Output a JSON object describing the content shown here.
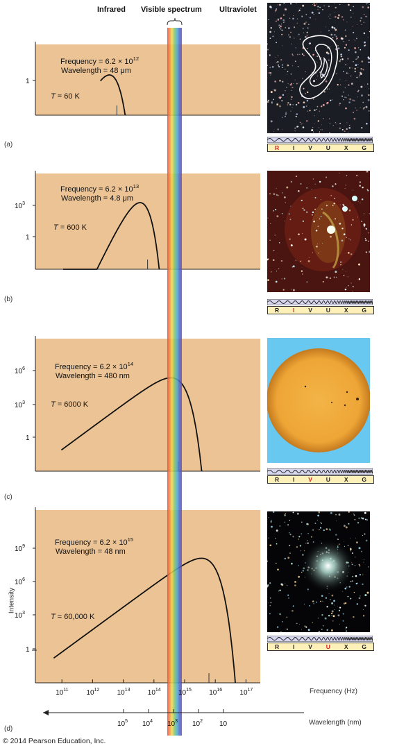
{
  "header": {
    "infrared": "Infrared",
    "visible": "Visible spectrum",
    "ultraviolet": "Ultraviolet"
  },
  "panels": [
    {
      "label": "(a)",
      "frequency_text": "Frequency  = 6.2",
      "frequency_exp": "12",
      "wavelength_text": "Wavelength = 48 μm",
      "temperature": "T = 60 K",
      "y_ticks": [
        "1"
      ],
      "highlight_filter": "R"
    },
    {
      "label": "(b)",
      "frequency_text": "Frequency  = 6.2",
      "frequency_exp": "13",
      "wavelength_text": "Wavelength = 4.8 μm",
      "temperature": "T = 600 K",
      "y_ticks": [
        "10^3",
        "1"
      ],
      "highlight_filter": "I"
    },
    {
      "label": "(c)",
      "frequency_text": "Frequency  = 6.2",
      "frequency_exp": "14",
      "wavelength_text": "Wavelength = 480 nm",
      "temperature": "T = 6000 K",
      "y_ticks": [
        "10^6",
        "10^3",
        "1"
      ],
      "highlight_filter": "V"
    },
    {
      "label": "(d)",
      "frequency_text": "Frequency  = 6.2",
      "frequency_exp": "15",
      "wavelength_text": "Wavelength = 48 nm",
      "temperature": "T = 60,000 K",
      "y_ticks": [
        "10^9",
        "10^6",
        "10^3",
        "1"
      ],
      "highlight_filter": "U"
    }
  ],
  "filters": [
    "R",
    "I",
    "V",
    "U",
    "X",
    "G"
  ],
  "axes": {
    "ylabel": "Intensity",
    "xlabel": "Frequency (Hz)",
    "wavelength_label": "Wavelength (nm)",
    "freq_ticks": [
      "10^11",
      "10^12",
      "10^13",
      "10^14",
      "10^15",
      "10^16",
      "10^17"
    ],
    "wavelength_ticks": [
      "10^5",
      "10^4",
      "10^3",
      "10^2",
      "10"
    ]
  },
  "copyright": "© 2014 Pearson Education, Inc.",
  "chart_data": {
    "type": "line",
    "x_scale": "log",
    "xlabel": "Frequency (Hz)",
    "ylabel": "Intensity",
    "xlim": [
      10000000000.0,
      1e+18
    ],
    "peaks": [
      {
        "temperature_K": 60,
        "peak_frequency_hz": 6200000000000.0
      },
      {
        "temperature_K": 600,
        "peak_frequency_hz": 62000000000000.0
      },
      {
        "temperature_K": 6000,
        "peak_frequency_hz": 620000000000000.0
      },
      {
        "temperature_K": 60000,
        "peak_frequency_hz": 6200000000000000.0
      }
    ],
    "colors": {
      "panel": "#ecc394",
      "curve": "#111111",
      "highlight": "#d0201c"
    }
  }
}
